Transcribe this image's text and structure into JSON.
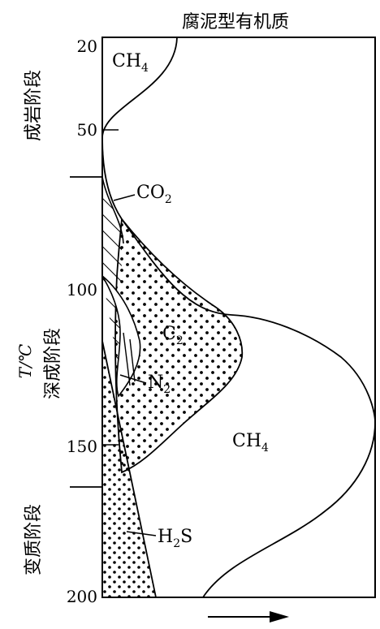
{
  "title": "腐泥型有机质",
  "axis": {
    "label": "T/℃",
    "ticks": [
      "20",
      "50",
      "100",
      "150",
      "200"
    ]
  },
  "stages": [
    "成岩阶段",
    "深成阶段",
    "变质阶段"
  ],
  "gases": {
    "ch4_top_main": "CH",
    "ch4_top_sub": "4",
    "co2_main": "CO",
    "co2_sub": "2",
    "c2_main": "C",
    "c2_sub": "2",
    "n2_main": "N",
    "n2_sub": "2",
    "ch4_main": "CH",
    "ch4_sub": "4",
    "h2s_main": "H",
    "h2s_sub": "2",
    "h2s_tail": "S"
  }
}
